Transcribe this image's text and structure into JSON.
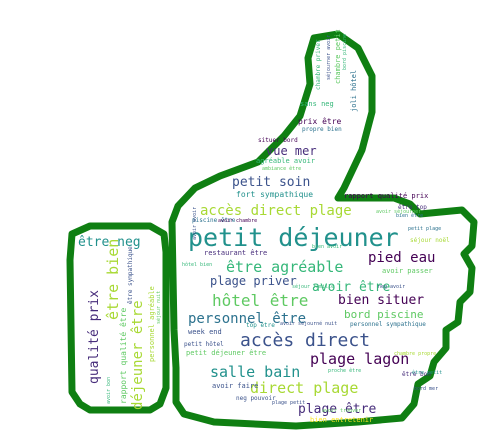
{
  "colors": {
    "outline": "#0f7f12",
    "background": "#ffffff",
    "palette": [
      "#440154",
      "#3b528b",
      "#21918c",
      "#5ec962",
      "#a8d934",
      "#2c728e",
      "#472d7b",
      "#35b779",
      "#fde725"
    ]
  },
  "words": [
    {
      "text": "petit déjeuner",
      "color": "#21918c"
    },
    {
      "text": "accès direct",
      "color": "#3b528b"
    },
    {
      "text": "plage lagon",
      "color": "#440154"
    },
    {
      "text": "salle bain",
      "color": "#21918c"
    },
    {
      "text": "direct plage",
      "color": "#a8d934"
    },
    {
      "text": "hôtel être",
      "color": "#5ec962"
    },
    {
      "text": "personnel être",
      "color": "#2c728e"
    },
    {
      "text": "être agréable",
      "color": "#35b779"
    },
    {
      "text": "accès direct plage",
      "color": "#a8d934"
    },
    {
      "text": "pied eau",
      "color": "#440154"
    },
    {
      "text": "avoir être",
      "color": "#35b779"
    },
    {
      "text": "bien situer",
      "color": "#440154"
    },
    {
      "text": "plage être",
      "color": "#472d7b"
    },
    {
      "text": "plage priver",
      "color": "#3b528b"
    },
    {
      "text": "petit soin",
      "color": "#3b528b"
    },
    {
      "text": "vue mer",
      "color": "#472d7b"
    },
    {
      "text": "bord piscine",
      "color": "#5ec962"
    },
    {
      "text": "être neg",
      "color": "#21918c"
    },
    {
      "text": "être bien",
      "color": "#a8d934"
    },
    {
      "text": "déjeuner être",
      "color": "#a8d934"
    },
    {
      "text": "qualité prix",
      "color": "#472d7b"
    },
    {
      "text": "fort sympathique",
      "color": "#21918c"
    },
    {
      "text": "agréable avoir",
      "color": "#35b779"
    },
    {
      "text": "prix être",
      "color": "#440154"
    },
    {
      "text": "sans neg",
      "color": "#35b779"
    },
    {
      "text": "restaurant être",
      "color": "#472d7b"
    },
    {
      "text": "week end",
      "color": "#3b528b"
    },
    {
      "text": "petit hôtel",
      "color": "#3b528b"
    },
    {
      "text": "petit déjeuner être",
      "color": "#5ec962"
    },
    {
      "text": "personnel sympathique",
      "color": "#2c728e"
    },
    {
      "text": "rapport qualité prix",
      "color": "#440154"
    },
    {
      "text": "avoir passer",
      "color": "#5ec962"
    },
    {
      "text": "séjour famille",
      "color": "#35b779"
    },
    {
      "text": "avoir faire",
      "color": "#3b528b"
    },
    {
      "text": "neg pouvoir",
      "color": "#3b528b"
    },
    {
      "text": "rapport qualité être",
      "color": "#5ec962"
    },
    {
      "text": "personnel agréable",
      "color": "#a8d934"
    },
    {
      "text": "top être",
      "color": "#21918c"
    },
    {
      "text": "bien entretenir",
      "color": "#fde725"
    },
    {
      "text": "propre bien",
      "color": "#2c728e"
    },
    {
      "text": "séjour noël",
      "color": "#a8d934"
    },
    {
      "text": "être sympathique",
      "color": "#3b528b"
    },
    {
      "text": "avoir séjourner",
      "color": "#5ec962"
    },
    {
      "text": "avoir séjourné nuit",
      "color": "#3b528b"
    },
    {
      "text": "chambre petit",
      "color": "#5ec962"
    },
    {
      "text": "joli hôtel",
      "color": "#2c728e"
    },
    {
      "text": "être bon",
      "color": "#472d7b"
    },
    {
      "text": "situer bord",
      "color": "#440154"
    },
    {
      "text": "piscine être",
      "color": "#2c728e"
    },
    {
      "text": "hôtel bien",
      "color": "#35b779"
    },
    {
      "text": "avoir chambre",
      "color": "#440154"
    },
    {
      "text": "être petit",
      "color": "#21918c"
    },
    {
      "text": "bord mer",
      "color": "#3b528b"
    },
    {
      "text": "plage petit",
      "color": "#3b528b"
    },
    {
      "text": "avoir bon",
      "color": "#35b779"
    },
    {
      "text": "chambre priver",
      "color": "#35b779"
    },
    {
      "text": "séjourner avoir",
      "color": "#3b528b"
    },
    {
      "text": "être top",
      "color": "#472d7b"
    },
    {
      "text": "bien être",
      "color": "#2c728e"
    },
    {
      "text": "avoir avoir",
      "color": "#3b528b"
    },
    {
      "text": "bord piscine",
      "color": "#35b779"
    },
    {
      "text": "chambre propre",
      "color": "#a8d934"
    },
    {
      "text": "séjour nuit",
      "color": "#5ec962"
    },
    {
      "text": "neg avoir",
      "color": "#3b528b"
    },
    {
      "text": "bien avoir",
      "color": "#35b779"
    },
    {
      "text": "petit plage",
      "color": "#2c728e"
    },
    {
      "text": "ambiance être",
      "color": "#5ec962"
    },
    {
      "text": "proche être",
      "color": "#35b779"
    },
    {
      "text": "avoir trouver",
      "color": "#5ec962"
    }
  ]
}
